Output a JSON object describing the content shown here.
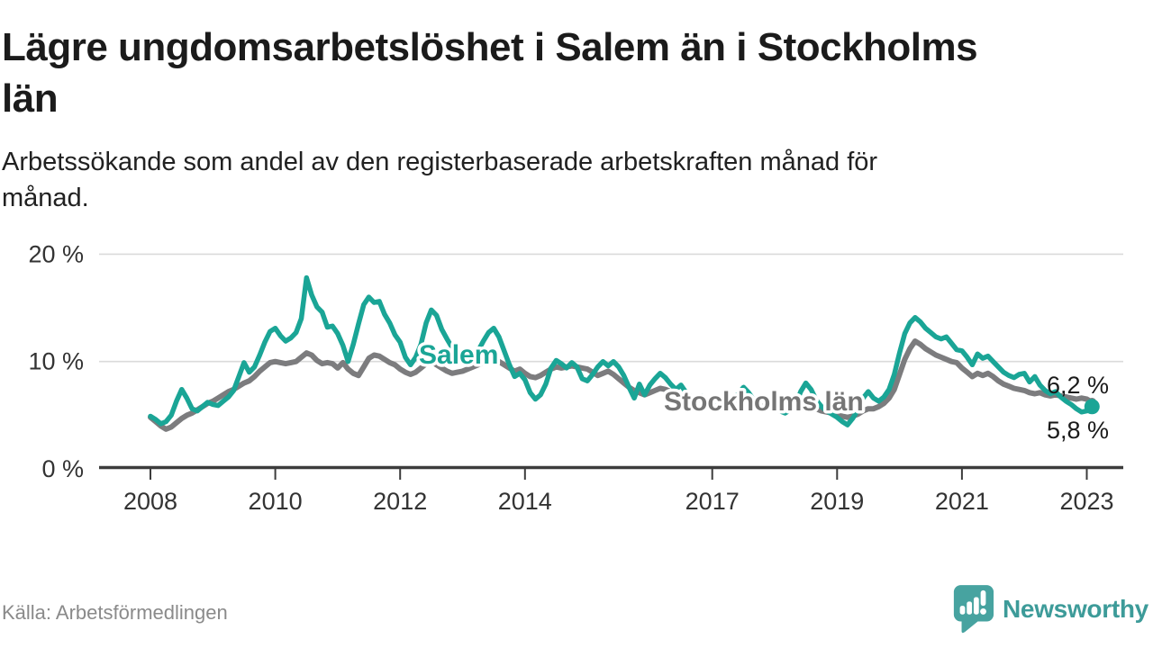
{
  "title": {
    "line1": "Lägre ungdomsarbetslöshet i Salem än i Stockholms",
    "line2": "län"
  },
  "subtitle": {
    "line1": "Arbetssökande som andel av den registerbaserade arbetskraften månad för",
    "line2": "månad."
  },
  "source": "Källa: Arbetsförmedlingen",
  "logo": {
    "text": "Newsworthy"
  },
  "colors": {
    "salem": "#1aa596",
    "stockholm": "#7c7c7e",
    "stockholm_label": "#757575",
    "grid": "#dadada",
    "axis": "#3c3c3c",
    "value_text": "#1a1a1a",
    "muted_text": "#8a8a8a",
    "logo_teal": "#47a3a0"
  },
  "chart_data": {
    "type": "line",
    "title": "Lägre ungdomsarbetslöshet i Salem än i Stockholms län",
    "subtitle": "Arbetssökande som andel av den registerbaserade arbetskraften månad för månad.",
    "unit": "%",
    "frequency": "monthly",
    "start": "2008-01",
    "end": "2023-02",
    "grid": "horizontal-only",
    "ylim": [
      0,
      21
    ],
    "x_ticks": [
      2008,
      2010,
      2012,
      2014,
      2017,
      2019,
      2021,
      2023
    ],
    "y_ticks": [
      {
        "value": 0,
        "label": "0 %"
      },
      {
        "value": 10,
        "label": "10 %"
      },
      {
        "value": 20,
        "label": "20 %"
      }
    ],
    "series": [
      {
        "name": "Salem",
        "end_label": "5,8 %",
        "end_value": 5.8,
        "color": "#1aa596",
        "values": [
          4.9,
          4.6,
          4.2,
          4.4,
          5.0,
          6.3,
          7.4,
          6.6,
          5.6,
          5.4,
          5.8,
          6.2,
          6.0,
          5.9,
          6.3,
          6.7,
          7.3,
          8.6,
          9.9,
          9.0,
          9.5,
          10.6,
          11.8,
          12.8,
          13.1,
          12.4,
          11.9,
          12.2,
          12.7,
          14.0,
          17.8,
          16.2,
          15.1,
          14.6,
          13.2,
          13.3,
          12.6,
          11.5,
          10.0,
          11.6,
          13.5,
          15.3,
          16.0,
          15.5,
          15.6,
          14.4,
          13.6,
          12.5,
          11.8,
          10.4,
          9.7,
          10.4,
          11.6,
          13.6,
          14.8,
          14.3,
          13.0,
          12.1,
          11.3,
          10.6,
          10.2,
          9.9,
          10.4,
          11.0,
          11.9,
          12.7,
          13.1,
          12.3,
          11.0,
          9.7,
          8.6,
          8.9,
          8.3,
          7.1,
          6.5,
          6.9,
          7.9,
          9.4,
          10.1,
          9.8,
          9.4,
          9.9,
          9.5,
          8.4,
          8.2,
          8.8,
          9.5,
          10.0,
          9.6,
          10.0,
          9.5,
          8.7,
          7.6,
          6.6,
          7.9,
          6.9,
          7.8,
          8.4,
          8.9,
          8.5,
          7.9,
          7.4,
          7.8,
          7.1,
          6.7,
          6.4,
          6.8,
          6.3,
          6.0,
          5.8,
          5.6,
          5.9,
          6.3,
          7.0,
          7.6,
          7.1,
          6.4,
          5.9,
          5.6,
          5.8,
          5.6,
          5.4,
          5.2,
          5.5,
          6.0,
          7.2,
          8.0,
          7.4,
          6.4,
          5.8,
          5.4,
          5.1,
          4.8,
          4.4,
          4.1,
          4.7,
          5.5,
          6.6,
          7.2,
          6.6,
          6.3,
          6.7,
          7.4,
          8.8,
          10.8,
          12.6,
          13.6,
          14.1,
          13.7,
          13.1,
          12.7,
          12.3,
          12.1,
          12.3,
          11.7,
          11.1,
          11.0,
          10.4,
          9.7,
          10.7,
          10.3,
          10.5,
          10.0,
          9.5,
          9.0,
          8.7,
          8.5,
          8.8,
          8.9,
          8.1,
          8.6,
          7.8,
          7.3,
          7.0,
          7.2,
          6.7,
          6.3,
          6.0,
          5.6,
          5.3,
          5.4,
          5.8
        ]
      },
      {
        "name": "Stockholms län",
        "end_label": "6,2 %",
        "end_value": 6.2,
        "color": "#7c7c7e",
        "values": [
          4.8,
          4.4,
          4.0,
          3.7,
          3.9,
          4.3,
          4.7,
          5.0,
          5.2,
          5.5,
          5.8,
          6.1,
          6.3,
          6.6,
          6.9,
          7.2,
          7.4,
          7.7,
          8.0,
          8.2,
          8.6,
          9.1,
          9.5,
          9.9,
          10.0,
          9.9,
          9.8,
          9.9,
          10.0,
          10.4,
          10.8,
          10.6,
          10.1,
          9.8,
          9.9,
          9.8,
          9.4,
          9.9,
          9.3,
          8.9,
          8.7,
          9.5,
          10.3,
          10.6,
          10.5,
          10.2,
          9.9,
          9.7,
          9.3,
          9.0,
          8.8,
          9.0,
          9.4,
          9.8,
          10.0,
          9.7,
          9.4,
          9.1,
          8.9,
          9.0,
          9.1,
          9.3,
          9.5,
          9.7,
          9.9,
          10.1,
          10.2,
          10.0,
          9.7,
          9.4,
          9.1,
          9.3,
          8.9,
          8.6,
          8.5,
          8.7,
          9.0,
          9.3,
          9.5,
          9.4,
          9.5,
          9.6,
          9.5,
          9.4,
          9.3,
          9.0,
          8.7,
          8.9,
          9.1,
          8.8,
          8.4,
          8.0,
          7.6,
          7.3,
          7.1,
          6.9,
          7.1,
          7.3,
          7.5,
          7.4,
          7.2,
          7.0,
          6.9,
          6.8,
          6.6,
          6.5,
          6.4,
          6.3,
          6.2,
          6.1,
          6.0,
          6.1,
          6.2,
          6.3,
          6.4,
          6.3,
          6.1,
          5.9,
          5.8,
          5.7,
          5.6,
          5.5,
          5.4,
          5.5,
          5.6,
          5.8,
          5.9,
          5.8,
          5.6,
          5.4,
          5.3,
          5.2,
          5.0,
          4.9,
          4.8,
          4.9,
          5.1,
          5.4,
          5.6,
          5.6,
          5.8,
          6.1,
          6.6,
          7.4,
          8.8,
          10.2,
          11.2,
          11.9,
          11.6,
          11.2,
          10.9,
          10.6,
          10.4,
          10.2,
          10.0,
          9.9,
          9.4,
          9.0,
          8.6,
          8.9,
          8.7,
          8.9,
          8.6,
          8.2,
          7.9,
          7.7,
          7.5,
          7.4,
          7.3,
          7.1,
          7.0,
          7.1,
          6.9,
          6.8,
          6.9,
          6.8,
          6.7,
          6.6,
          6.5,
          6.6,
          6.5,
          6.2
        ]
      }
    ],
    "annotations": [
      {
        "text": "Salem",
        "series": "Salem"
      },
      {
        "text": "Stockholms län",
        "series": "Stockholms län"
      }
    ]
  }
}
